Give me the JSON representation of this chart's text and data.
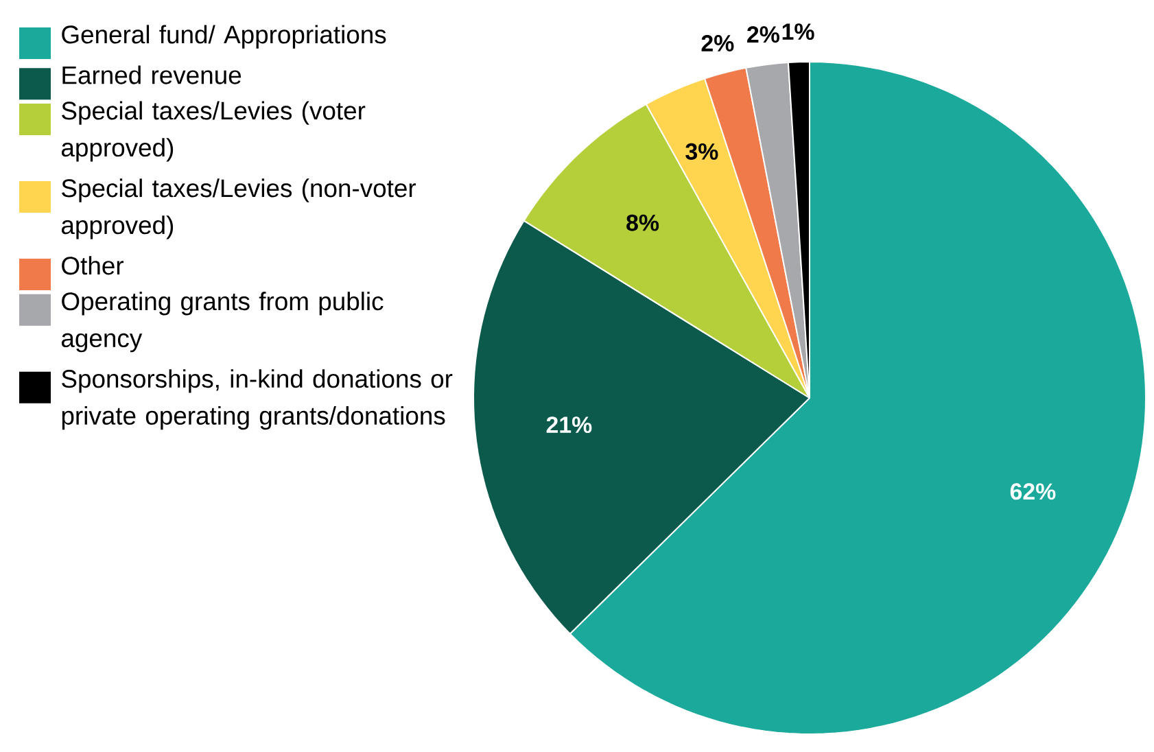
{
  "chart_data": {
    "type": "pie",
    "categories": [
      "General fund/ Appropriations",
      "Earned revenue",
      "Special taxes/Levies (voter approved)",
      "Special taxes/Levies (non-voter approved)",
      "Other",
      "Operating grants from public agency",
      "Sponsorships, in-kind donations or private operating grants/donations"
    ],
    "values": [
      62,
      21,
      8,
      3,
      2,
      2,
      1
    ],
    "value_labels": [
      "62%",
      "21%",
      "8%",
      "3%",
      "2%",
      "2%",
      "1%"
    ],
    "colors": [
      "#1aa99a",
      "#0b5a4c",
      "#b5cf3a",
      "#ffd44f",
      "#f07a4a",
      "#a6a8ab",
      "#000000"
    ],
    "legend": "left"
  }
}
